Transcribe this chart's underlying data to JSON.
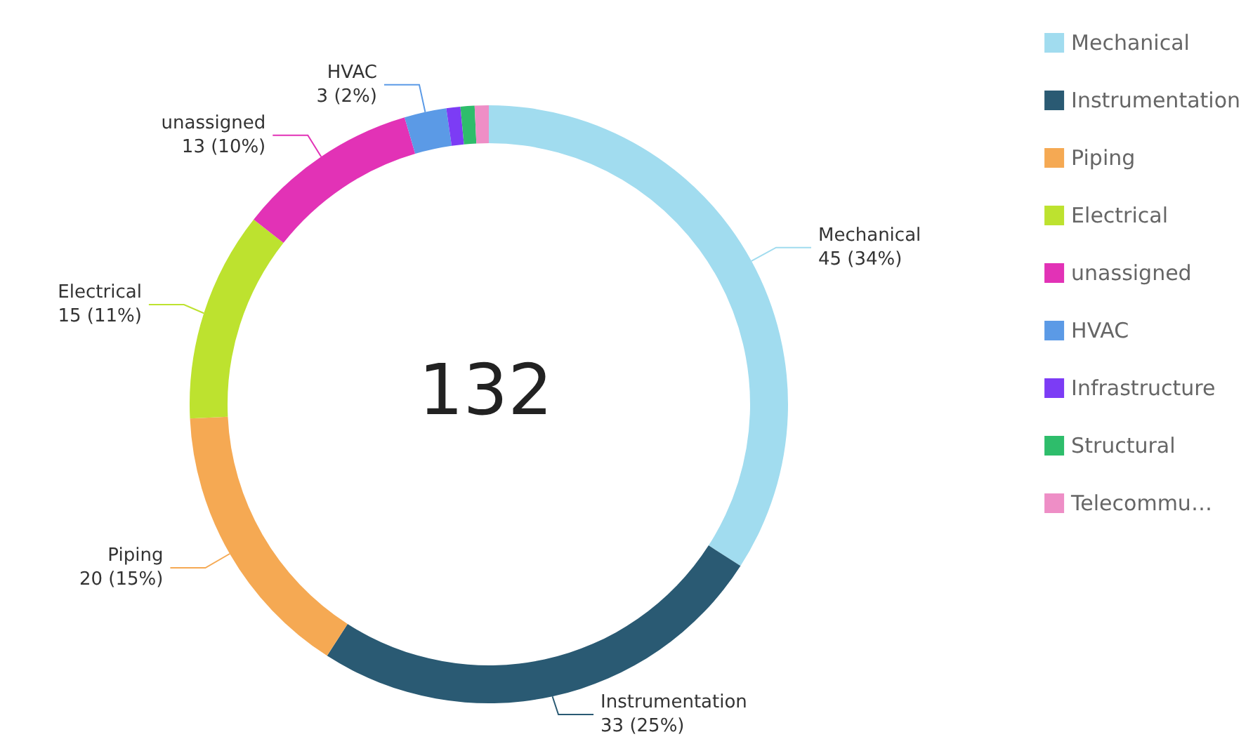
{
  "chart_data": {
    "type": "donut",
    "categories": [
      "Mechanical",
      "Instrumentation",
      "Piping",
      "Electrical",
      "unassigned",
      "HVAC",
      "Infrastructure",
      "Structural",
      "Telecommu…"
    ],
    "values": [
      45,
      33,
      20,
      15,
      13,
      3,
      1,
      1,
      1
    ],
    "colors": [
      "#a1dcef",
      "#2a5a73",
      "#f5a953",
      "#bde22f",
      "#e232b6",
      "#5b9ae6",
      "#7c3cf5",
      "#2ebd6b",
      "#ee8ec6"
    ],
    "value_labels": [
      "45 (34%)",
      "33 (25%)",
      "20 (15%)",
      "15 (11%)",
      "13 (10%)",
      "3 (2%)",
      null,
      null,
      null
    ],
    "annotations": [
      "132"
    ],
    "legend": "right"
  }
}
